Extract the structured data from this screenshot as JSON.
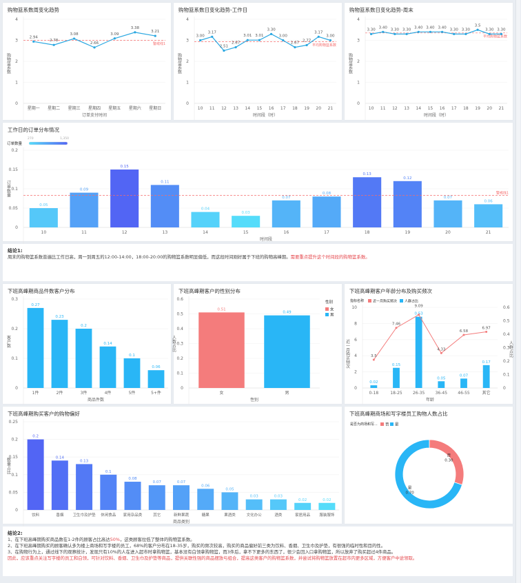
{
  "colors": {
    "line": "#2aa7e1",
    "reference": "#f56c6c",
    "bar_low": "#55dcfa",
    "bar_high": "#5265f4",
    "female": "#f47c7c",
    "male": "#29b6f6",
    "highlight": "#e5484d"
  },
  "chart_data": [
    {
      "type": "line",
      "title": "购物篮系数周变化趋势",
      "categories": [
        "星期一",
        "星期二",
        "星期三",
        "星期四",
        "星期五",
        "星期六",
        "星期日"
      ],
      "values": [
        2.94,
        2.78,
        3.08,
        2.66,
        3.09,
        3.38,
        3.21
      ],
      "value_labels": [
        "2.94",
        "2.78",
        "3.08",
        "2.66",
        "3.09",
        "3.38",
        "3.21"
      ],
      "xlabel": "订单支付时间",
      "ylabel": "购物篮系数",
      "yticks": [
        0,
        1,
        2,
        3,
        4
      ],
      "reference": {
        "value": 3.0,
        "label": "警戒线1"
      }
    },
    {
      "type": "line",
      "title": "购物篮系数日变化趋势-工作日",
      "categories": [
        "10",
        "11",
        "12",
        "13",
        "14",
        "15",
        "16",
        "17",
        "18",
        "19",
        "20",
        "21"
      ],
      "values": [
        3.0,
        3.17,
        2.51,
        2.67,
        3.01,
        3.01,
        3.3,
        3.0,
        2.67,
        2.77,
        3.17,
        3.0
      ],
      "value_labels": [
        "3.00",
        "3.17",
        "2.51",
        "2.67",
        "3.01",
        "3.01",
        "3.30",
        "3.00",
        "2.67",
        "2.77",
        "3.17",
        "3.00"
      ],
      "xlabel": "时间段（时）",
      "ylabel": "购物篮系数",
      "yticks": [
        0,
        1,
        2,
        3,
        4
      ],
      "reference": {
        "value": 2.93,
        "label": "平均购物篮系数"
      }
    },
    {
      "type": "line",
      "title": "购物篮系数日变化趋势-周末",
      "categories": [
        "10",
        "11",
        "12",
        "13",
        "14",
        "15",
        "16",
        "17",
        "18",
        "19",
        "20",
        "21"
      ],
      "values": [
        3.3,
        3.4,
        3.3,
        3.3,
        3.4,
        3.4,
        3.4,
        3.3,
        3.3,
        3.5,
        3.3,
        3.3
      ],
      "value_labels": [
        "3.30",
        "3.40",
        "3.30",
        "3.30",
        "3.40",
        "3.40",
        "3.40",
        "3.30",
        "3.30",
        "3.5",
        "3.30",
        "3.30"
      ],
      "xlabel": "时间段（时）",
      "ylabel": "购物篮系数",
      "yticks": [
        0,
        1,
        2,
        3,
        4
      ],
      "reference": {
        "value": 3.35,
        "label": "平均购物篮系数"
      }
    },
    {
      "type": "bar",
      "title": "工作日的订单分布情况",
      "legend": {
        "title": "订单数量",
        "min": "270",
        "max": "1,350"
      },
      "categories": [
        "10",
        "11",
        "12",
        "13",
        "14",
        "15",
        "16",
        "17",
        "18",
        "19",
        "20",
        "21"
      ],
      "values": [
        0.05,
        0.09,
        0.15,
        0.11,
        0.04,
        0.03,
        0.07,
        0.08,
        0.13,
        0.12,
        0.07,
        0.06
      ],
      "xlabel": "时间段",
      "ylabel": "订单数量",
      "yticks": [
        0,
        0.05,
        0.1,
        0.15,
        0.2
      ],
      "reference": {
        "value": 0.083,
        "label": "警戒线1"
      }
    },
    {
      "type": "bar",
      "title": "下班高峰期商品件数客户分布",
      "categories": [
        "1件",
        "2件",
        "3件",
        "4件",
        "5件",
        "5+件"
      ],
      "values": [
        0.27,
        0.23,
        0.2,
        0.14,
        0.1,
        0.06
      ],
      "xlabel": "商品件数",
      "ylabel": "客户数",
      "yticks": [
        0,
        0.1,
        0.2,
        0.3
      ]
    },
    {
      "type": "bar",
      "title": "下班高峰期客户的性别分布",
      "categories": [
        "女",
        "男"
      ],
      "values": [
        0.51,
        0.49
      ],
      "xlabel": "性别",
      "ylabel": "人数占比",
      "yticks": [
        0,
        0.1,
        0.2,
        0.3,
        0.4,
        0.5,
        0.6
      ],
      "legend": {
        "title": "性别",
        "items": [
          "女",
          "男"
        ]
      }
    },
    {
      "type": "bar",
      "title": "下班高峰期客户年龄分布及购买频次",
      "legend": {
        "title": "指标名称",
        "items": [
          "近一月购买频次",
          "人群占比"
        ]
      },
      "categories": [
        "0-18",
        "18-25",
        "26-35",
        "36-45",
        "46-55",
        "其它"
      ],
      "series": [
        {
          "name": "近一月购买频次",
          "type": "line",
          "axis": "left",
          "values": [
            3.5,
            7.46,
            9.09,
            4.33,
            6.58,
            6.97
          ]
        },
        {
          "name": "人群占比",
          "type": "bar",
          "axis": "right",
          "values": [
            0.02,
            0.15,
            0.53,
            0.05,
            0.07,
            0.17
          ]
        }
      ],
      "xlabel": "年龄",
      "ylabel": "近一月购买频次",
      "ylabel_right": "人群占比",
      "yticks": [
        0,
        2,
        4,
        6,
        8,
        10
      ],
      "yticks_right": [
        0,
        0.1,
        0.2,
        0.3,
        0.4,
        0.5,
        0.6
      ]
    },
    {
      "type": "bar",
      "title": "下班高峰期购买客户的购物偏好",
      "categories": [
        "饮料",
        "香烟",
        "卫生巾及护垫",
        "休闲食品",
        "家用杂品类",
        "其它",
        "新鲜果蔬",
        "糖果",
        "果酒类",
        "文化办公",
        "酒类",
        "家居用品",
        "服装服饰"
      ],
      "values": [
        0.2,
        0.14,
        0.13,
        0.1,
        0.08,
        0.07,
        0.07,
        0.06,
        0.05,
        0.03,
        0.03,
        0.02,
        0.02
      ],
      "xlabel": "商品类别",
      "ylabel": "数量占比",
      "yticks": [
        0,
        0.05,
        0.1,
        0.15,
        0.2,
        0.25
      ]
    },
    {
      "type": "pie",
      "title": "下班高峰期商场和写字楼员工购物人数占比",
      "legend": {
        "title": "是否为商场和写...",
        "items": [
          "否",
          "是"
        ]
      },
      "categories": [
        "否",
        "是"
      ],
      "values": [
        0.3,
        0.7
      ],
      "value_labels": [
        "0.30",
        "0.70"
      ]
    }
  ],
  "conclusion1": {
    "heading": "结论1:",
    "text": "周末的购物篮系数普遍比工作日高，周一到周五的12:00-14:00，18:00-20:00的购物篮系数明显偏低，而这段时间刚好属于下班的购物高峰期。",
    "highlight": "需要重点提升这个时间段的购物篮系数。"
  },
  "conclusion2": {
    "heading": "结论2:",
    "line1_pre": "1、在下班高峰期购买商品数在1-2件的顾客占比高达",
    "line1_hl": "50%",
    "line1_post": "，这类顾客拉低了整体的购物篮系数。",
    "line2": "2、在下班高峰期购买的顾客确认多为楼上商场和写字楼的员工，68%的客户分布在18-35岁，购买的频次较高，购买的商品偏好前三类为饮料、香烟、卫生巾及护垫，有很强的临时性和目的性。",
    "line3": "3、在购物行为上，通过线下的观察统计，发现只有10%的人在进入超市时拿购物篮，基本没有白领拿购物篮，而3件后，拿不下更多的东西了，很少会回入口拿购物篮，所以放弃了购买超过4件商品。",
    "line4": "因此，应该重点关注写字楼的员工和白领，可针对饮料、香烟、卫生巾及护垫等商品，提供关联性强的商品摆放与组合，提高这类客户的购物篮系数，并尝试将购物篮放置在超市内更多区域，方便客户中途领取。"
  }
}
